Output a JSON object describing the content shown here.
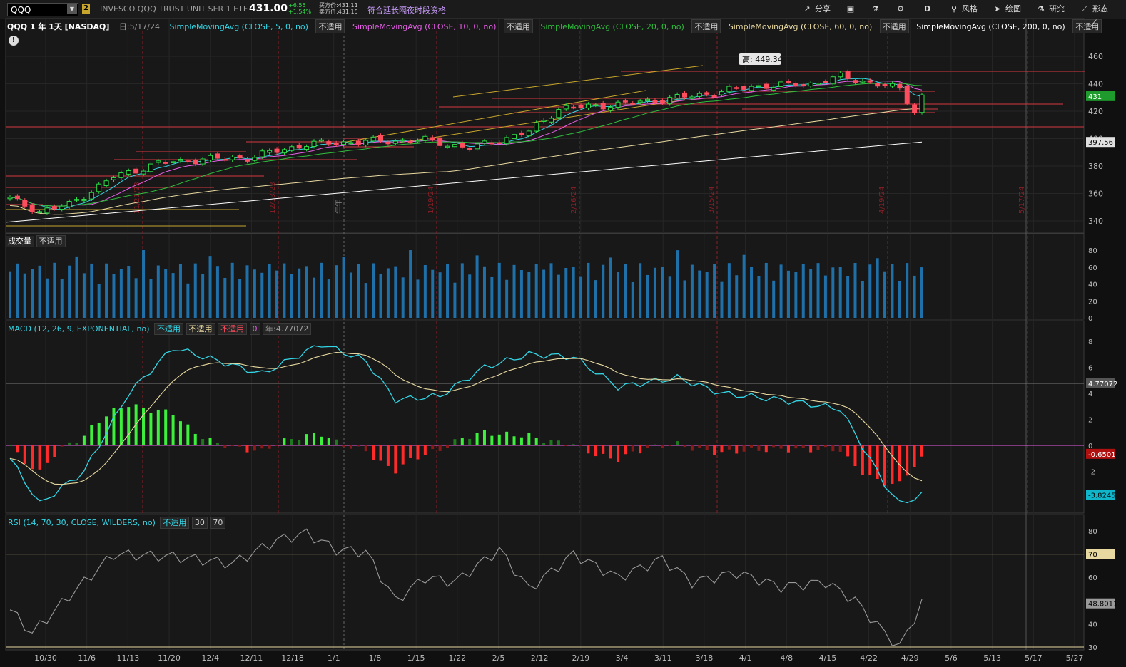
{
  "topbar": {
    "symbol": "QQQ",
    "link_badge": "2",
    "security_name": "INVESCO QQQ TRUST UNIT SER 1 ETF",
    "last_price": "431.00",
    "net_change": "+6.55",
    "pct_change": "+1.54%",
    "bid": "买方价:431.11",
    "ask": "卖方价:431.15",
    "extended_hours": "符合延长隔夜时段资格",
    "buttons": {
      "share": "分享",
      "aggregation": "D",
      "style": "风格",
      "drawings": "绘图",
      "studies": "研究",
      "patterns": "形态"
    }
  },
  "price_panel": {
    "header": "QQQ 1 年 1天 [NASDAQ]",
    "date": "日:5/17/24",
    "studies": [
      {
        "label": "SimpleMovingAvg (CLOSE, 5, 0, no)",
        "value": "不适用",
        "color": "#33d6e6"
      },
      {
        "label": "SimpleMovingAvg (CLOSE, 10, 0, no)",
        "value": "不适用",
        "color": "#e55fe6"
      },
      {
        "label": "SimpleMovingAvg (CLOSE, 20, 0, no)",
        "value": "不适用",
        "color": "#2fbf3d"
      },
      {
        "label": "SimpleMovingAvg (CLOSE, 60, 0, no)",
        "value": "不适用",
        "color": "#e8d9a0"
      },
      {
        "label": "SimpleMovingAvg (CLOSE, 200, 0, no)",
        "value": "不适用",
        "color": "#ffffff"
      }
    ],
    "high_bubble": "高: 449.34",
    "y_ticks": [
      "460",
      "440",
      "420",
      "400",
      "380",
      "360",
      "340"
    ],
    "y_ticks_values": [
      460,
      440,
      420,
      400,
      380,
      360,
      340
    ],
    "last_tag": "431",
    "ma200_tag": "397.56",
    "vertical_markers": [
      "11/21/23",
      "12/13/23",
      "1/19/24",
      "2/16/24",
      "3/15/24",
      "4/19/24",
      "5/17/24"
    ],
    "year_marker": "年年"
  },
  "volume_panel": {
    "label": "成交量",
    "value": "不适用",
    "y_ticks": [
      "80",
      "60",
      "40",
      "20",
      "0"
    ]
  },
  "macd_panel": {
    "label": "MACD (12, 26, 9, EXPONENTIAL, no)",
    "values": [
      "不适用",
      "不适用",
      "不适用"
    ],
    "zero_label": "0",
    "year_value": "年:4.77072",
    "y_ticks": [
      "8",
      "6",
      "4",
      "2",
      "0",
      "-2"
    ],
    "tags": {
      "v1": "4.77072",
      "v2": "-0.6501",
      "v3": "-3.8245"
    }
  },
  "rsi_panel": {
    "label": "RSI (14, 70, 30, CLOSE, WILDERS, no)",
    "value": "不适用",
    "os": "30",
    "ob": "70",
    "y_ticks": [
      "80",
      "70",
      "60",
      "50",
      "40",
      "30"
    ],
    "tags": {
      "ob": "70",
      "last": "48.8011"
    }
  },
  "x_axis": [
    "10/30",
    "11/6",
    "11/13",
    "11/20",
    "12/4",
    "12/11",
    "12/18",
    "1/1",
    "1/8",
    "1/15",
    "1/22",
    "2/5",
    "2/12",
    "2/19",
    "3/4",
    "3/11",
    "3/18",
    "4/1",
    "4/8",
    "4/15",
    "4/22",
    "4/29",
    "5/6",
    "5/13",
    "5/17",
    "5/27"
  ],
  "colors": {
    "up": "#2ddd48",
    "down": "#ff4d5e",
    "volume": "#1f6fa8",
    "ma5": "#33d6e6",
    "ma10": "#e55fe6",
    "ma20": "#2fbf3d",
    "ma60": "#e8d9a0",
    "ma200": "#ffffff",
    "level_line": "#d6373f",
    "trend_line": "#c8a62c"
  }
}
